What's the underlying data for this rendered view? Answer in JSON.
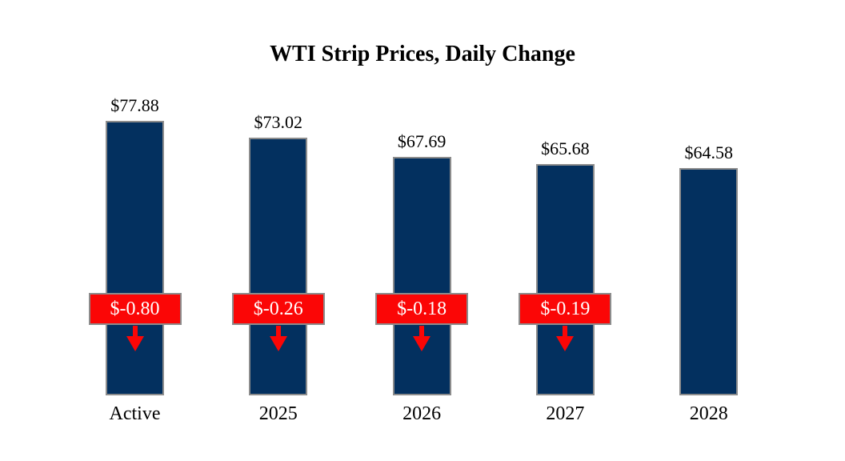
{
  "chart_data": {
    "type": "bar",
    "title": "WTI Strip Prices, Daily Change",
    "categories": [
      "Active",
      "2025",
      "2026",
      "2027",
      "2028"
    ],
    "values": [
      77.88,
      73.02,
      67.69,
      65.68,
      64.58
    ],
    "value_labels": [
      "$77.88",
      "$73.02",
      "$67.69",
      "$65.68",
      "$64.58"
    ],
    "daily_change_labels": [
      "$-0.80",
      "$-0.26",
      "$-0.18",
      "$-0.19",
      null
    ],
    "xlabel": "",
    "ylabel": "",
    "ylim": [
      0,
      80
    ],
    "grid": false,
    "legend": false,
    "annotations": "red badge with white daily-change text and red down arrow over first four bars",
    "colors": {
      "bar_fill": "#03305f",
      "bar_border": "#8c8c8c",
      "badge_fill": "#fb0606",
      "badge_border": "#8c8c8c",
      "badge_text": "#ffffff",
      "arrow": "#fb0606",
      "label_text": "#000000",
      "background": "#ffffff"
    }
  }
}
